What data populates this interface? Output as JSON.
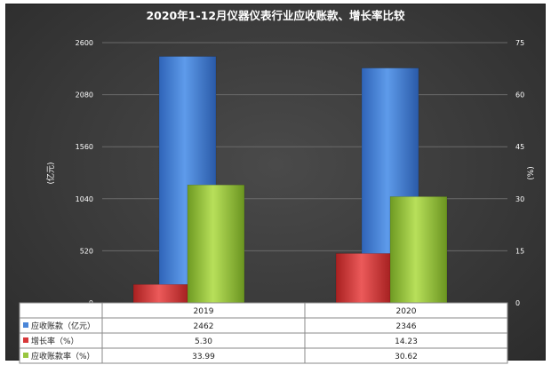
{
  "chart_data": {
    "type": "bar",
    "title": "2020年1-12月仪器仪表行业应收账款、增长率比较",
    "categories": [
      "2019",
      "2020"
    ],
    "y_left": {
      "label": "(亿元)",
      "ticks": [
        "0",
        "520",
        "1040",
        "1560",
        "2080",
        "2600"
      ],
      "range": [
        0,
        2600
      ]
    },
    "y_right": {
      "label": "(%)",
      "ticks": [
        "0",
        "15",
        "30",
        "45",
        "60",
        "75"
      ],
      "range": [
        0,
        75
      ]
    },
    "series": [
      {
        "name": "应收账款（亿元）",
        "axis": "left",
        "color": "#4a86d8",
        "values": [
          2462,
          2346
        ],
        "labels": [
          "2462",
          "2346"
        ]
      },
      {
        "name": "增长率（%）",
        "axis": "right",
        "color": "#d8383a",
        "values": [
          5.3,
          14.23
        ],
        "labels": [
          "5.30",
          "14.23"
        ]
      },
      {
        "name": "应收账款率（%）",
        "axis": "right",
        "color": "#98c640",
        "values": [
          33.99,
          30.62
        ],
        "labels": [
          "33.99",
          "30.62"
        ]
      }
    ],
    "grid": true,
    "legend": "data-table"
  }
}
